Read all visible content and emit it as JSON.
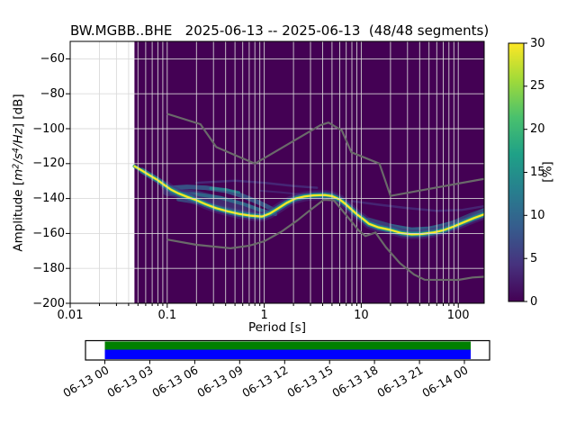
{
  "title": "BW.MGBB..BHE   2025-06-13 -- 2025-06-13  (48/48 segments)",
  "axes": {
    "xlabel": "Period [s]",
    "ylabel_segments": [
      {
        "text": "Amplitude [",
        "italic": false,
        "sup": false
      },
      {
        "text": "m",
        "italic": true,
        "sup": false
      },
      {
        "text": "2",
        "italic": true,
        "sup": true
      },
      {
        "text": "/s",
        "italic": true,
        "sup": false
      },
      {
        "text": "4",
        "italic": true,
        "sup": true
      },
      {
        "text": "/Hz",
        "italic": true,
        "sup": false
      },
      {
        "text": "] [dB]",
        "italic": false,
        "sup": false
      }
    ],
    "x_tick_labels": [
      "0.01",
      "0.1",
      "1",
      "10",
      "100"
    ],
    "y_tick_labels": [
      "−60",
      "−80",
      "−100",
      "−120",
      "−140",
      "−160",
      "−180",
      "−200"
    ]
  },
  "colorbar": {
    "label": "[%]",
    "tick_labels": [
      "0",
      "5",
      "10",
      "15",
      "20",
      "25",
      "30"
    ],
    "min": 0,
    "max": 30,
    "gradient": [
      "#440154",
      "#46327e",
      "#365c8d",
      "#277f8e",
      "#1fa187",
      "#4ac16d",
      "#a0da39",
      "#fde725"
    ]
  },
  "timeline": {
    "tick_labels": [
      "06-13 00",
      "06-13 03",
      "06-13 06",
      "06-13 09",
      "06-13 12",
      "06-13 15",
      "06-13 18",
      "06-13 21",
      "06-14 00"
    ],
    "segments_color": "#008000",
    "coverage_color": "#0000ff",
    "box_color": "#ffffff",
    "border_color": "#000000"
  },
  "chart_data": {
    "type": "heatmap",
    "title": "BW.MGBB..BHE   2025-06-13 -- 2025-06-13  (48/48 segments)",
    "xlabel": "Period [s]",
    "ylabel": "Amplitude [m^2/s^4/Hz] [dB]",
    "colorbar_label": "[%]",
    "xscale": "log",
    "xlim": [
      0.01,
      185
    ],
    "ylim": [
      -200,
      -50
    ],
    "clim": [
      0,
      30
    ],
    "colormap": "viridis",
    "grid": true,
    "grid_color": "#d9d9d9",
    "background_value_color": "#440154",
    "no_data_before_period": 0.046,
    "x_major_ticks": [
      0.01,
      0.1,
      1,
      10,
      100
    ],
    "y_major_ticks": [
      -60,
      -80,
      -100,
      -120,
      -140,
      -160,
      -180,
      -200
    ],
    "psd_mode_ridge": {
      "periods": [
        0.046,
        0.055,
        0.065,
        0.08,
        0.095,
        0.11,
        0.13,
        0.16,
        0.2,
        0.25,
        0.32,
        0.42,
        0.55,
        0.72,
        0.95,
        1.15,
        1.4,
        1.7,
        2.1,
        2.6,
        3.2,
        4.2,
        5.0,
        6.0,
        7.0,
        8.0,
        9.0,
        10.5,
        12,
        15,
        20,
        26,
        33,
        42,
        55,
        70,
        90,
        115,
        145,
        185
      ],
      "db": [
        -121.5,
        -124,
        -126.5,
        -129.5,
        -132.5,
        -135,
        -137,
        -139,
        -141,
        -143.3,
        -145.5,
        -147.3,
        -148.8,
        -149.8,
        -150.3,
        -148.5,
        -145.5,
        -142.5,
        -140,
        -138.8,
        -138.2,
        -138.0,
        -138.6,
        -140.5,
        -143.5,
        -146.5,
        -149,
        -151.8,
        -154.5,
        -156.5,
        -158,
        -159.8,
        -160.5,
        -160.3,
        -159.5,
        -158.2,
        -156,
        -153.5,
        -151.2,
        -149
      ]
    },
    "ridge_strokes": [
      {
        "color": "#46327e",
        "width": 11,
        "opacity": 0.5,
        "min_period": 0.09
      },
      {
        "color": "#2d6e8e",
        "width": 6.5,
        "opacity": 0.85,
        "min_period": 0.05
      },
      {
        "color": "#21a585",
        "width": 3.8,
        "opacity": 1,
        "min_period": 0
      },
      {
        "color": "#fde725",
        "width": 2.2,
        "opacity": 1,
        "min_period": 0
      }
    ],
    "secondary_bands": [
      {
        "color": "#3b528b",
        "width": 10,
        "opacity": 0.5,
        "periods": [
          0.1,
          0.2,
          0.4,
          0.7,
          1.0
        ],
        "db": [
          -136,
          -138,
          -142,
          -146,
          -149
        ]
      },
      {
        "color": "#355f8d",
        "width": 5,
        "opacity": 0.85,
        "periods": [
          0.1,
          0.16,
          0.25,
          0.4,
          0.6,
          0.9,
          1.2
        ],
        "db": [
          -134,
          -133.3,
          -133.8,
          -135.5,
          -138.5,
          -142.5,
          -146
        ]
      },
      {
        "color": "#2c728e",
        "width": 4,
        "opacity": 0.8,
        "periods": [
          0.11,
          0.2,
          0.35,
          0.6,
          0.9,
          1.3
        ],
        "db": [
          -137,
          -137.5,
          -139.5,
          -143,
          -146.5,
          -149
        ]
      },
      {
        "color": "#31688e",
        "width": 4,
        "opacity": 0.7,
        "periods": [
          0.13,
          0.25,
          0.5,
          0.8
        ],
        "db": [
          -140.5,
          -143,
          -147,
          -149.5
        ]
      },
      {
        "color": "#23888e",
        "width": 3,
        "opacity": 0.8,
        "periods": [
          0.28,
          0.4,
          0.55
        ],
        "db": [
          -134.2,
          -134.8,
          -136.5
        ]
      },
      {
        "color": "#2d6e8e",
        "width": 8,
        "opacity": 0.6,
        "periods": [
          12,
          20,
          33,
          55,
          90,
          140,
          185
        ],
        "db": [
          -153,
          -156.5,
          -159,
          -158,
          -154.5,
          -150,
          -147.5
        ]
      },
      {
        "color": "#31688e",
        "width": 4,
        "opacity": 0.75,
        "periods": [
          20,
          33,
          50,
          80,
          120,
          185
        ],
        "db": [
          -155.5,
          -157.5,
          -157,
          -154.5,
          -152,
          -146.5
        ]
      },
      {
        "color": "#472d7b",
        "width": 2.5,
        "opacity": 0.85,
        "periods": [
          0.2,
          0.5,
          1.0,
          2.0,
          3.5
        ],
        "db": [
          -131,
          -129.8,
          -131,
          -132.8,
          -133.8
        ]
      },
      {
        "color": "#472d7b",
        "width": 2,
        "opacity": 0.7,
        "periods": [
          0.9,
          1.5,
          2.5
        ],
        "db": [
          -135.5,
          -136.5,
          -137.8
        ]
      },
      {
        "color": "#472d7b",
        "width": 2.5,
        "opacity": 0.8,
        "periods": [
          8,
          15,
          30,
          60,
          110,
          180
        ],
        "db": [
          -141.5,
          -143.5,
          -145.5,
          -147,
          -146.5,
          -144.5
        ]
      }
    ],
    "noise_models": {
      "color": "#6a6a6a",
      "nhnm": {
        "periods": [
          0.1,
          0.22,
          0.32,
          0.8,
          3.8,
          4.6,
          6.3,
          7.9,
          15.4,
          20,
          185
        ],
        "db": [
          -91.5,
          -97.4,
          -110.5,
          -120.0,
          -98.0,
          -96.5,
          -101.0,
          -113.5,
          -120.0,
          -138.5,
          -128.7
        ]
      },
      "nlnm": {
        "periods": [
          0.1,
          0.2,
          0.45,
          0.7,
          1.0,
          1.5,
          2.2,
          3.0,
          4.1,
          5.2,
          6.2,
          9.5,
          11,
          14,
          18,
          25,
          35,
          45,
          100,
          140,
          185
        ],
        "db": [
          -163.5,
          -166.5,
          -168.5,
          -167,
          -164.5,
          -159,
          -152.5,
          -146.5,
          -140.7,
          -141,
          -146,
          -158.5,
          -161.5,
          -159.5,
          -168,
          -177,
          -183.5,
          -186.5,
          -186.6,
          -185.2,
          -184.8
        ]
      }
    }
  }
}
